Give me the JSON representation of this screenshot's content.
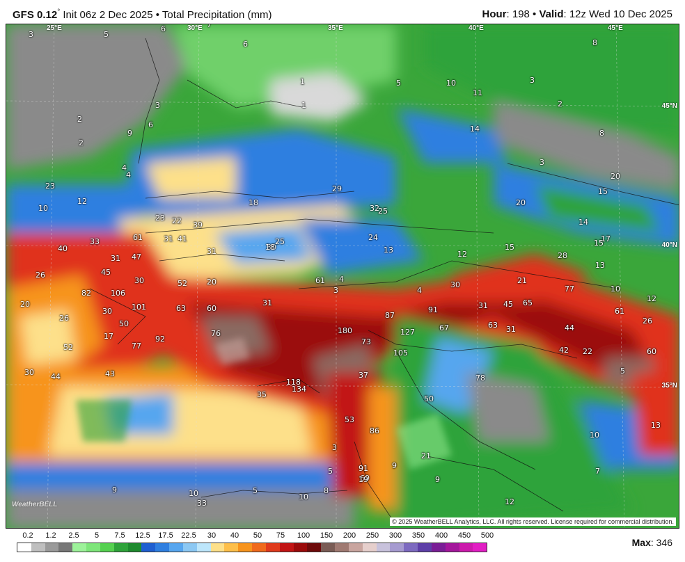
{
  "header": {
    "model": "GFS 0.12",
    "degree_sign": "°",
    "init_text": " Init 06z 2 Dec 2025 • Total Precipitation (mm)",
    "hour_label": "Hour",
    "hour_value": ": 198 • ",
    "valid_label": "Valid",
    "valid_value": ": 12z Wed 10 Dec 2025"
  },
  "map": {
    "lon_labels": [
      "25°E",
      "30°E",
      "35°E",
      "40°E",
      "45°E"
    ],
    "lat_labels": [
      "45°N",
      "40°N",
      "35°N"
    ],
    "copyright": "© 2025 WeatherBELL Analytics, LLC. All rights reserved. License required for commercial distribution.",
    "logo_text": "WeatherBELL",
    "value_labels": [
      "3",
      "5",
      "8",
      "6",
      "7",
      "6",
      "2",
      "8",
      "1",
      "5",
      "10",
      "11",
      "3",
      "2",
      "4",
      "8",
      "3",
      "1",
      "3",
      "6",
      "2",
      "9",
      "4",
      "14",
      "20",
      "23",
      "10",
      "12",
      "18",
      "29",
      "32",
      "25",
      "30",
      "20",
      "17",
      "15",
      "61",
      "31",
      "39",
      "22",
      "23",
      "41",
      "47",
      "31",
      "18",
      "25",
      "24",
      "13",
      "15",
      "12",
      "28",
      "15",
      "13",
      "14",
      "40",
      "31",
      "33",
      "30",
      "26",
      "45",
      "52",
      "20",
      "31",
      "61",
      "4",
      "3",
      "4",
      "30",
      "21",
      "77",
      "10",
      "12",
      "20",
      "82",
      "106",
      "30",
      "101",
      "63",
      "60",
      "91",
      "31",
      "45",
      "65",
      "61",
      "26",
      "26",
      "50",
      "76",
      "180",
      "87",
      "127",
      "63",
      "31",
      "44",
      "67",
      "17",
      "77",
      "92",
      "73",
      "105",
      "42",
      "22",
      "60",
      "52",
      "30",
      "44",
      "43",
      "37",
      "78",
      "5",
      "134",
      "35",
      "118",
      "50",
      "10",
      "13",
      "53",
      "86",
      "21",
      "9",
      "3",
      "91",
      "9",
      "7",
      "5",
      "69",
      "19",
      "9",
      "10",
      "33",
      "5",
      "10",
      "8",
      "12",
      "7"
    ],
    "colors": {
      "deep_red": "#9b0a0a",
      "red": "#e0301e",
      "orange": "#f7941d",
      "yellow": "#fde08a",
      "blue": "#2f7fe0",
      "light_blue": "#9fd3f7",
      "green": "#33a845",
      "light_green": "#8ee68a",
      "gray": "#8a8a8a",
      "brown": "#8a6a62"
    }
  },
  "legend": {
    "labels": [
      "0.2",
      "1.2",
      "2.5",
      "5",
      "7.5",
      "12.5",
      "17.5",
      "22.5",
      "30",
      "40",
      "50",
      "75",
      "100",
      "150",
      "200",
      "250",
      "300",
      "350",
      "400",
      "450",
      "500"
    ],
    "colors": [
      "#ffffff",
      "#bfbfbf",
      "#9a9a9a",
      "#777777",
      "#9df29a",
      "#7ee67a",
      "#55d150",
      "#2ea33a",
      "#1e8a2e",
      "#1f5fd1",
      "#2f7fe0",
      "#57a6ef",
      "#8cc8f3",
      "#bde6fb",
      "#fde08a",
      "#fdbf4a",
      "#f7941d",
      "#f06a1c",
      "#e03a1c",
      "#c21414",
      "#9b0a0a",
      "#6e0a0a",
      "#7a5c55",
      "#a07a72",
      "#c9a59f",
      "#e6cfcc",
      "#c8c2dc",
      "#a69bd0",
      "#7d6ac0",
      "#5e3fa8",
      "#7a1e96",
      "#a4179c",
      "#cc1aac",
      "#e21ec4"
    ],
    "max_label": "Max",
    "max_value": ": 346"
  }
}
